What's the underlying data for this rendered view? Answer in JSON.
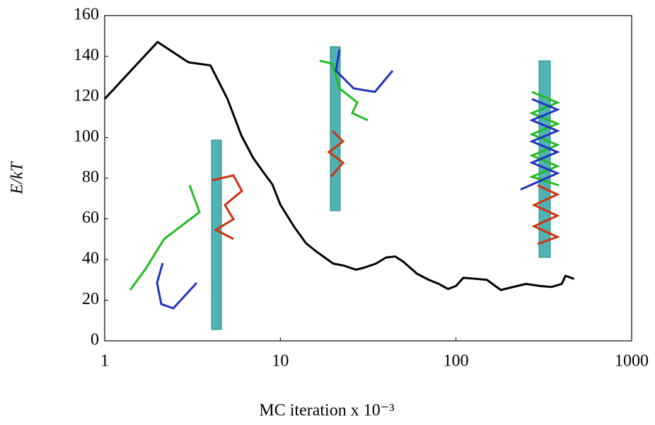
{
  "chart_data": {
    "type": "line",
    "xlabel": "MC iteration x 10⁻³",
    "ylabel": "E/kT",
    "x_scale": "log",
    "xlim": [
      1,
      1000
    ],
    "xticks": [
      1,
      10,
      100,
      1000
    ],
    "ylim": [
      0,
      160
    ],
    "yticks": [
      0,
      20,
      40,
      60,
      80,
      100,
      120,
      140,
      160
    ],
    "grid": false,
    "series": [
      {
        "color": "#000000",
        "x": [
          1,
          2,
          3,
          4,
          5,
          6,
          7,
          8,
          9,
          10,
          12,
          14,
          16,
          20,
          23,
          27,
          30,
          35,
          40,
          45,
          50,
          60,
          70,
          80,
          90,
          100,
          110,
          130,
          150,
          180,
          200,
          250,
          300,
          350,
          400,
          420,
          470
        ],
        "values": [
          119,
          147,
          137,
          135.5,
          119,
          101,
          90,
          83,
          77,
          67,
          56,
          48,
          44,
          38,
          37,
          35,
          36,
          38,
          41,
          41.5,
          39,
          33,
          30,
          28,
          25.5,
          27,
          31,
          30.5,
          30,
          25,
          26,
          28,
          27,
          26.5,
          28,
          32,
          30.5
        ]
      }
    ]
  }
}
